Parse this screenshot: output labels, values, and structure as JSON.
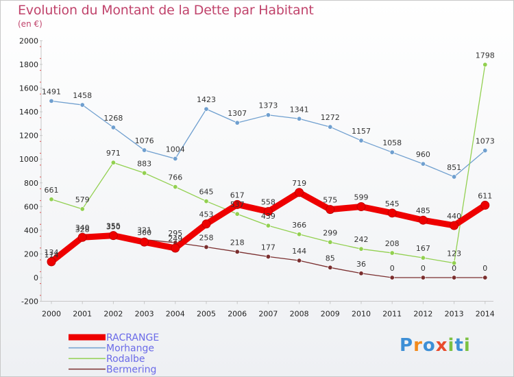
{
  "title": "Evolution du Montant de la Dette par Habitant",
  "unit": "(en €)",
  "logo": [
    "P",
    "r",
    "o",
    "x",
    "i",
    "t",
    "i"
  ],
  "logo_colors": [
    "#3d8fd6",
    "#f28a1b",
    "#3d8fd6",
    "#e94b2c",
    "#7cc142",
    "#3d8fd6",
    "#7cc142"
  ],
  "chart_data": {
    "type": "line",
    "x": [
      "2000",
      "2001",
      "2002",
      "2003",
      "2004",
      "2005",
      "2006",
      "2007",
      "2008",
      "2009",
      "2010",
      "2011",
      "2012",
      "2013",
      "2014"
    ],
    "ylim": [
      -200,
      2000
    ],
    "yticks": [
      "-200",
      "0",
      "200",
      "400",
      "600",
      "800",
      "1000",
      "1200",
      "1400",
      "1600",
      "1800",
      "2000"
    ],
    "grid": false,
    "legend": "bottom-left",
    "series": [
      {
        "name": "Morhange",
        "color": "#6f9fcf",
        "values": [
          1491,
          1458,
          1268,
          1076,
          1004,
          1423,
          1307,
          1373,
          1341,
          1272,
          1157,
          1058,
          960,
          851,
          1073
        ]
      },
      {
        "name": "Rodalbe",
        "color": "#92d050",
        "values": [
          661,
          579,
          971,
          883,
          766,
          645,
          537,
          439,
          366,
          299,
          242,
          208,
          167,
          123,
          1798
        ]
      },
      {
        "name": "Bermering",
        "color": "#7a2e2e",
        "values": [
          114,
          328,
          350,
          321,
          295,
          258,
          218,
          177,
          144,
          85,
          36,
          0,
          0,
          0,
          0
        ]
      },
      {
        "name": "RACRANGE",
        "color": "#ee0000",
        "values": [
          134,
          340,
          355,
          300,
          249,
          453,
          617,
          558,
          719,
          575,
          599,
          545,
          485,
          440,
          611
        ]
      }
    ],
    "legend_order": [
      "RACRANGE",
      "Morhange",
      "Rodalbe",
      "Bermering"
    ]
  }
}
